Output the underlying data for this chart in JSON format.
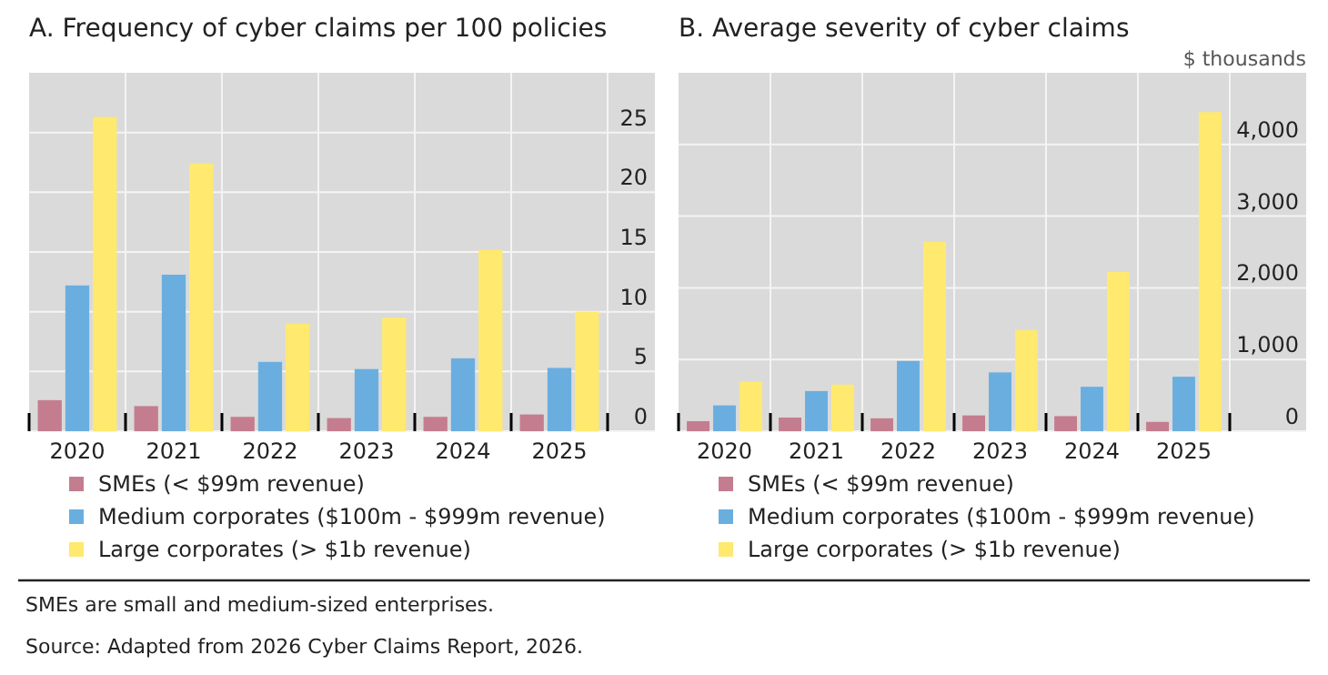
{
  "chart_data": [
    {
      "type": "bar",
      "title": "A. Frequency of cyber claims per 100 policies",
      "categories": [
        "2020",
        "2021",
        "2022",
        "2023",
        "2024",
        "2025"
      ],
      "series": [
        {
          "name": "SMEs (< $99m revenue)",
          "color": "#c47d8f",
          "values": [
            2.6,
            2.1,
            1.2,
            1.1,
            1.2,
            1.4
          ]
        },
        {
          "name": "Medium corporates ($100m - $999m revenue)",
          "color": "#6aaee0",
          "values": [
            12.2,
            13.1,
            5.8,
            5.2,
            6.1,
            5.3
          ]
        },
        {
          "name": "Large corporates (> $1b revenue)",
          "color": "#ffe96e",
          "values": [
            26.3,
            22.4,
            9.0,
            9.5,
            15.2,
            10.0
          ]
        }
      ],
      "ylim": [
        0,
        30
      ],
      "yticks": [
        0,
        5,
        10,
        15,
        20,
        25
      ],
      "grid": true,
      "legend": "bottom"
    },
    {
      "type": "bar",
      "title": "B. Average severity of cyber claims",
      "ylabel": "$ thousands",
      "categories": [
        "2020",
        "2021",
        "2022",
        "2023",
        "2024",
        "2025"
      ],
      "series": [
        {
          "name": "SMEs (< $99m revenue)",
          "color": "#c47d8f",
          "values": [
            140,
            190,
            180,
            220,
            210,
            130
          ]
        },
        {
          "name": "Medium corporates ($100m - $999m revenue)",
          "color": "#6aaee0",
          "values": [
            360,
            560,
            980,
            820,
            620,
            760
          ]
        },
        {
          "name": "Large corporates (> $1b revenue)",
          "color": "#ffe96e",
          "values": [
            690,
            650,
            2640,
            1410,
            2220,
            4450
          ]
        }
      ],
      "ylim": [
        0,
        5000
      ],
      "yticks": [
        {
          "value": 0,
          "label": "0"
        },
        {
          "value": 1000,
          "label": "1,000"
        },
        {
          "value": 2000,
          "label": "2,000"
        },
        {
          "value": 3000,
          "label": "3,000"
        },
        {
          "value": 4000,
          "label": "4,000"
        }
      ],
      "grid": true,
      "legend": "bottom",
      "annotations": [
        "SMEs are small and medium-sized enterprises.",
        "Source: Adapted from 2026 Cyber Claims Report, 2026."
      ]
    }
  ]
}
